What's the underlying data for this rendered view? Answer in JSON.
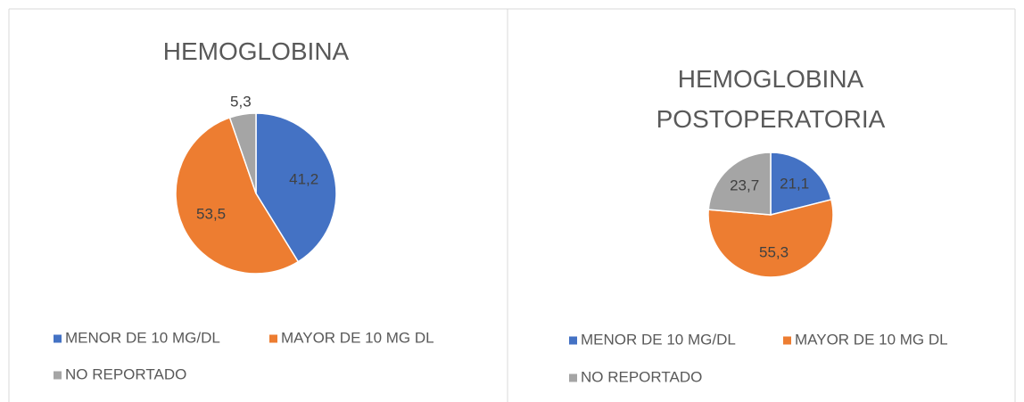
{
  "chart_data": [
    {
      "type": "pie",
      "title": "HEMOGLOBINA",
      "categories": [
        "MENOR DE 10 MG/DL",
        "MAYOR DE 10 MG DL",
        "NO REPORTADO"
      ],
      "values": [
        41.2,
        53.5,
        5.3
      ],
      "value_labels": [
        "41,2",
        "53,5",
        "5,3"
      ],
      "colors": [
        "#4472c4",
        "#ed7d31",
        "#a5a5a5"
      ],
      "legend": "bottom"
    },
    {
      "type": "pie",
      "title": "HEMOGLOBINA POSTOPERATORIA",
      "categories": [
        "MENOR DE 10 MG/DL",
        "MAYOR DE 10 MG DL",
        "NO REPORTADO"
      ],
      "values": [
        21.1,
        55.3,
        23.7
      ],
      "value_labels": [
        "21,1",
        "55,3",
        "23,7"
      ],
      "colors": [
        "#4472c4",
        "#ed7d31",
        "#a5a5a5"
      ],
      "legend": "bottom"
    }
  ]
}
